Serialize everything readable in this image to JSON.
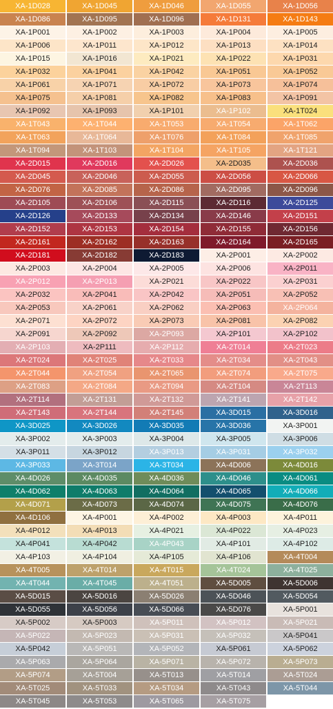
{
  "swatches": [
    [
      "XA-1D028",
      "#f7b533"
    ],
    [
      "XA-1D045",
      "#f0a532"
    ],
    [
      "XA-1D046",
      "#ef9d3e"
    ],
    [
      "XA-1D055",
      "#f2a66f"
    ],
    [
      "XA-1D056",
      "#e8824a"
    ],
    [
      "XA-1D086",
      "#c9834f"
    ],
    [
      "XA-1D095",
      "#a27452"
    ],
    [
      "XA-1D096",
      "#a06f51"
    ],
    [
      "XA-1D131",
      "#f57b3a"
    ],
    [
      "XA-1D143",
      "#f57c13"
    ],
    [
      "XA-1P001",
      "#fdf3e7"
    ],
    [
      "XA-1P002",
      "#fdf0e3"
    ],
    [
      "XA-1P003",
      "#fdeedd"
    ],
    [
      "XA-1P004",
      "#fdeadb"
    ],
    [
      "XA-1P005",
      "#fdeee0"
    ],
    [
      "XA-1P006",
      "#fde5c8"
    ],
    [
      "XA-1P011",
      "#fde6cd"
    ],
    [
      "XA-1P012",
      "#fde6c8"
    ],
    [
      "XA-1P013",
      "#fddfc2"
    ],
    [
      "XA-1P014",
      "#fde1c2"
    ],
    [
      "XA-1P015",
      "#fdf5e2"
    ],
    [
      "XA-1P016",
      "#f2e6d2"
    ],
    [
      "XA-1P021",
      "#fdebc0"
    ],
    [
      "XA-1P022",
      "#fde2b3"
    ],
    [
      "XA-1P031",
      "#fdd8ad"
    ],
    [
      "XA-1P032",
      "#fcd29c"
    ],
    [
      "XA-1P041",
      "#fbd19f"
    ],
    [
      "XA-1P042",
      "#fad2a2"
    ],
    [
      "XA-1P051",
      "#f9c894"
    ],
    [
      "XA-1P052",
      "#f9c996"
    ],
    [
      "XA-1P061",
      "#f8d2a8"
    ],
    [
      "XA-1P071",
      "#f6d3b2"
    ],
    [
      "XA-1P072",
      "#f8cda4"
    ],
    [
      "XA-1P073",
      "#f8c59c"
    ],
    [
      "XA-1P074",
      "#f6c09a"
    ],
    [
      "XA-1P075",
      "#f5c18f"
    ],
    [
      "XA-1P081",
      "#f5cfa9"
    ],
    [
      "XA-1P082",
      "#f7c58d"
    ],
    [
      "XA-1P083",
      "#f7c08b"
    ],
    [
      "XA-1P091",
      "#f3c4a5"
    ],
    [
      "XA-1P092",
      "#e8c6b1"
    ],
    [
      "XA-1P093",
      "#e6c4ac"
    ],
    [
      "XA-1P101",
      "#f1d0ae"
    ],
    [
      "XA-1P102",
      "#ebbd8f"
    ],
    [
      "XA-1T024",
      "#fae07c"
    ],
    [
      "XA-1T043",
      "#f9b26c"
    ],
    [
      "XA-1T044",
      "#fdb170"
    ],
    [
      "XA-1T053",
      "#f8ab6e"
    ],
    [
      "XA-1T054",
      "#f7ab6f"
    ],
    [
      "XA-1T062",
      "#fba468"
    ],
    [
      "XA-1T063",
      "#f2a35c"
    ],
    [
      "XA-1T064",
      "#e8b898"
    ],
    [
      "XA-1T076",
      "#eea06b"
    ],
    [
      "XA-1T084",
      "#f3a15a"
    ],
    [
      "XA-1T085",
      "#f0a36c"
    ],
    [
      "XA-1T094",
      "#c3977a"
    ],
    [
      "XA-1T103",
      "#c3937a"
    ],
    [
      "XA-1T104",
      "#f3a563"
    ],
    [
      "XA-1T105",
      "#f5a463"
    ],
    [
      "XA-1T121",
      "#e3a482"
    ],
    [
      "XA-2D015",
      "#e0344d"
    ],
    [
      "XA-2D016",
      "#e0395d"
    ],
    [
      "XA-2D026",
      "#e3514d"
    ],
    [
      "XA-2D035",
      "#f4be8a"
    ],
    [
      "XA-2D036",
      "#ad524f"
    ],
    [
      "XA-2D045",
      "#d45a4e"
    ],
    [
      "XA-2D046",
      "#c8625a"
    ],
    [
      "XA-2D055",
      "#cc5c4e"
    ],
    [
      "XA-2D056",
      "#cc4e45"
    ],
    [
      "XA-2D066",
      "#d85744"
    ],
    [
      "XA-2D076",
      "#c26445"
    ],
    [
      "XA-2D085",
      "#c3735a"
    ],
    [
      "XA-2D086",
      "#b6644b"
    ],
    [
      "XA-2D095",
      "#a16b61"
    ],
    [
      "XA-2D096",
      "#8c5748"
    ],
    [
      "XA-2D105",
      "#9e4b55"
    ],
    [
      "XA-2D106",
      "#9e5156"
    ],
    [
      "XA-2D115",
      "#8a4f55"
    ],
    [
      "XA-2D116",
      "#5c2a33"
    ],
    [
      "XA-2D125",
      "#3d4a9a"
    ],
    [
      "XA-2D126",
      "#25408a"
    ],
    [
      "XA-2D133",
      "#a64a5b"
    ],
    [
      "XA-2D134",
      "#77414b"
    ],
    [
      "XA-2D146",
      "#893b49"
    ],
    [
      "XA-2D151",
      "#c3404a"
    ],
    [
      "XA-2D152",
      "#b13d4c"
    ],
    [
      "XA-2D153",
      "#ae3542"
    ],
    [
      "XA-2D154",
      "#a42e3d"
    ],
    [
      "XA-2D155",
      "#8f2b37"
    ],
    [
      "XA-2D156",
      "#6f2932"
    ],
    [
      "XA-2D161",
      "#c2271f"
    ],
    [
      "XA-2D162",
      "#9d2e24"
    ],
    [
      "XA-2D163",
      "#97302a"
    ],
    [
      "XA-2D164",
      "#7f1a2b"
    ],
    [
      "XA-2D165",
      "#7a1e23"
    ],
    [
      "XA-2D181",
      "#d10d1d"
    ],
    [
      "XA-2D182",
      "#873b34"
    ],
    [
      "XA-2D183",
      "#0e1a33"
    ],
    [
      "XA-2P001",
      "#fdeee6"
    ],
    [
      "XA-2P002",
      "#fdeae3"
    ],
    [
      "XA-2P003",
      "#fde8e2"
    ],
    [
      "XA-2P004",
      "#fde6e4"
    ],
    [
      "XA-2P005",
      "#fde8e8"
    ],
    [
      "XA-2P006",
      "#fde3e1"
    ],
    [
      "XA-2P011",
      "#f9b3c5"
    ],
    [
      "XA-2P012",
      "#f8a1b3"
    ],
    [
      "XA-2P013",
      "#f59fb2"
    ],
    [
      "XA-2P021",
      "#fcdcd8"
    ],
    [
      "XA-2P022",
      "#f8c6c6"
    ],
    [
      "XA-2P031",
      "#fbd0d0"
    ],
    [
      "XA-2P032",
      "#fbc4c1"
    ],
    [
      "XA-2P041",
      "#f9bcb9"
    ],
    [
      "XA-2P042",
      "#f9c5c5"
    ],
    [
      "XA-2P051",
      "#f6bcb8"
    ],
    [
      "XA-2P052",
      "#f8c0b5"
    ],
    [
      "XA-2P053",
      "#f8c8bd"
    ],
    [
      "XA-2P061",
      "#f8d2c8"
    ],
    [
      "XA-2P062",
      "#f9cfc3"
    ],
    [
      "XA-2P063",
      "#fbbfb2"
    ],
    [
      "XA-2P064",
      "#f4b39e"
    ],
    [
      "XA-2P071",
      "#fde0d2"
    ],
    [
      "XA-2P072",
      "#fdd4c3"
    ],
    [
      "XA-2P073",
      "#f9cbb5"
    ],
    [
      "XA-2P081",
      "#f8c3a9"
    ],
    [
      "XA-2P082",
      "#fbd2b2"
    ],
    [
      "XA-2P091",
      "#f6d6cf"
    ],
    [
      "XA-2P092",
      "#eec8b8"
    ],
    [
      "XA-2P093",
      "#dca8a3"
    ],
    [
      "XA-2P101",
      "#f4c8d0"
    ],
    [
      "XA-2P102",
      "#f2c2cb"
    ],
    [
      "XA-2P103",
      "#e3aeb3"
    ],
    [
      "XA-2P111",
      "#eebbbf"
    ],
    [
      "XA-2P112",
      "#e6acae"
    ],
    [
      "XA-2T014",
      "#ef7f95"
    ],
    [
      "XA-2T023",
      "#ec7c88"
    ],
    [
      "XA-2T024",
      "#dc7779"
    ],
    [
      "XA-2T025",
      "#e08378"
    ],
    [
      "XA-2T033",
      "#e6888a"
    ],
    [
      "XA-2T034",
      "#e48d89"
    ],
    [
      "XA-2T043",
      "#e28f86"
    ],
    [
      "XA-2T044",
      "#f4956c"
    ],
    [
      "XA-2T054",
      "#f0a181"
    ],
    [
      "XA-2T065",
      "#e9956f"
    ],
    [
      "XA-2T074",
      "#f29d7d"
    ],
    [
      "XA-2T075",
      "#f9a98b"
    ],
    [
      "XA-2T083",
      "#dda085"
    ],
    [
      "XA-2T084",
      "#f4a886"
    ],
    [
      "XA-2T094",
      "#e99a84"
    ],
    [
      "XA-2T104",
      "#d58a83"
    ],
    [
      "XA-2T113",
      "#c98697"
    ],
    [
      "XA-2T114",
      "#b2707e"
    ],
    [
      "XA-2T131",
      "#c29e96"
    ],
    [
      "XA-2T132",
      "#d09a97"
    ],
    [
      "XA-2T141",
      "#bca5b0"
    ],
    [
      "XA-2T142",
      "#e7a1a8"
    ],
    [
      "XA-2T143",
      "#cf6d78"
    ],
    [
      "XA-2T144",
      "#d8747d"
    ],
    [
      "XA-2T145",
      "#d28078"
    ],
    [
      "XA-3D015",
      "#2a6fa3"
    ],
    [
      "XA-3D016",
      "#30628c"
    ],
    [
      "XA-3D025",
      "#0f96c6"
    ],
    [
      "XA-3D026",
      "#1289c0"
    ],
    [
      "XA-3D035",
      "#127bb5"
    ],
    [
      "XA-3D036",
      "#2774a8"
    ],
    [
      "XA-3P001",
      "#f2f4f2"
    ],
    [
      "XA-3P002",
      "#e3ecec"
    ],
    [
      "XA-3P003",
      "#e3ecec"
    ],
    [
      "XA-3P004",
      "#dde8e9"
    ],
    [
      "XA-3P005",
      "#cfe6ee"
    ],
    [
      "XA-3P006",
      "#cfdde4"
    ],
    [
      "XA-3P011",
      "#d4dfe6"
    ],
    [
      "XA-3P012",
      "#c7d6e0"
    ],
    [
      "XA-3P013",
      "#b3cee0"
    ],
    [
      "XA-3P031",
      "#a5cde4"
    ],
    [
      "XA-3P032",
      "#9bd0ee"
    ],
    [
      "XA-3P033",
      "#5db8e4"
    ],
    [
      "XA-3T014",
      "#7ba4c8"
    ],
    [
      "XA-3T034",
      "#2bb4e6"
    ],
    [
      "XA-4D006",
      "#8c7359"
    ],
    [
      "XA-4D016",
      "#7c8a3a"
    ],
    [
      "XA-4D026",
      "#5e8d69"
    ],
    [
      "XA-4D035",
      "#5c8a62"
    ],
    [
      "XA-4D036",
      "#6f8c5a"
    ],
    [
      "XA-4D046",
      "#2d8f8b"
    ],
    [
      "XA-4D061",
      "#0a8c82"
    ],
    [
      "XA-4D062",
      "#0f7f6a"
    ],
    [
      "XA-4D063",
      "#0f7c6a"
    ],
    [
      "XA-4D064",
      "#116e61"
    ],
    [
      "XA-4D065",
      "#134f6d"
    ],
    [
      "XA-4D066",
      "#12adb8"
    ],
    [
      "XA-4D071",
      "#b3a04a"
    ],
    [
      "XA-4D073",
      "#6b6c47"
    ],
    [
      "XA-4D074",
      "#5b6746"
    ],
    [
      "XA-4D075",
      "#3f7454"
    ],
    [
      "XA-4D076",
      "#3a6d49"
    ],
    [
      "XA-4D106",
      "#907040"
    ],
    [
      "XA-4P001",
      "#fdf5e4"
    ],
    [
      "XA-4P002",
      "#fdefd6"
    ],
    [
      "XA-4P003",
      "#fde8c4"
    ],
    [
      "XA-4P011",
      "#fdf3dc"
    ],
    [
      "XA-4P012",
      "#f3e0bb"
    ],
    [
      "XA-4P013",
      "#f3ddb6"
    ],
    [
      "XA-4P021",
      "#e6f0e2"
    ],
    [
      "XA-4P022",
      "#dbe7d5"
    ],
    [
      "XA-4P023",
      "#e6efe3"
    ],
    [
      "XA-4P041",
      "#c4e2dc"
    ],
    [
      "XA-4P042",
      "#b8dcd2"
    ],
    [
      "XA-4P043",
      "#a8d3c6"
    ],
    [
      "XA-4P101",
      "#e1ebe4"
    ],
    [
      "XA-4P102",
      "#ddebe6"
    ],
    [
      "XA-4P103",
      "#f2f0e4"
    ],
    [
      "XA-4P104",
      "#f0efe1"
    ],
    [
      "XA-4P105",
      "#e5ead7"
    ],
    [
      "XA-4P106",
      "#e1e4d0"
    ],
    [
      "XA-4T004",
      "#b48a5a"
    ],
    [
      "XA-4T005",
      "#b7925c"
    ],
    [
      "XA-4T014",
      "#bda16b"
    ],
    [
      "XA-4T015",
      "#c9a85d"
    ],
    [
      "XA-4T024",
      "#a5c499"
    ],
    [
      "XA-4T025",
      "#8db09d"
    ],
    [
      "XA-4T044",
      "#72b3b0"
    ],
    [
      "XA-4T045",
      "#6aada7"
    ],
    [
      "XA-4T051",
      "#bcb08c"
    ],
    [
      "XA-5D005",
      "#5f4e40"
    ],
    [
      "XA-5D006",
      "#3f3431"
    ],
    [
      "XA-5D015",
      "#5a4d45"
    ],
    [
      "XA-5D016",
      "#4b4541"
    ],
    [
      "XA-5D026",
      "#8b7f72"
    ],
    [
      "XA-5D046",
      "#4c5257"
    ],
    [
      "XA-5D054",
      "#525a60"
    ],
    [
      "XA-5D055",
      "#2f3338"
    ],
    [
      "XA-5D056",
      "#3d4149"
    ],
    [
      "XA-5D066",
      "#484d55"
    ],
    [
      "XA-5D076",
      "#4a4948"
    ],
    [
      "XA-5P001",
      "#e8e2dd"
    ],
    [
      "XA-5P002",
      "#d7cbc6"
    ],
    [
      "XA-5P003",
      "#d6cac2"
    ],
    [
      "XA-5P011",
      "#cfc1bb"
    ],
    [
      "XA-5P012",
      "#d2c2c2"
    ],
    [
      "XA-5P021",
      "#c9bbb6"
    ],
    [
      "XA-5P022",
      "#c5b6b6"
    ],
    [
      "XA-5P023",
      "#c3b9b1"
    ],
    [
      "XA-5P031",
      "#cac0b5"
    ],
    [
      "XA-5P032",
      "#c5c0b9"
    ],
    [
      "XA-5P041",
      "#cac8c9"
    ],
    [
      "XA-5P042",
      "#c6ced8"
    ],
    [
      "XA-5P051",
      "#b9b8b7"
    ],
    [
      "XA-5P052",
      "#b3b5b9"
    ],
    [
      "XA-5P061",
      "#c6cad3"
    ],
    [
      "XA-5P062",
      "#ccd2dd"
    ],
    [
      "XA-5P063",
      "#aaaaac"
    ],
    [
      "XA-5P064",
      "#aaa69f"
    ],
    [
      "XA-5P071",
      "#b9b3a4"
    ],
    [
      "XA-5P072",
      "#b8b3ac"
    ],
    [
      "XA-5P073",
      "#b9ad91"
    ],
    [
      "XA-5P074",
      "#b29d86"
    ],
    [
      "XA-5T004",
      "#a6a097"
    ],
    [
      "XA-5T013",
      "#97908b"
    ],
    [
      "XA-5T014",
      "#9f9fa3"
    ],
    [
      "XA-5T024",
      "#ab9d94"
    ],
    [
      "XA-5T025",
      "#a28b79"
    ],
    [
      "XA-5T033",
      "#a1927f"
    ],
    [
      "XA-5T034",
      "#b59b82"
    ],
    [
      "XA-5T043",
      "#8e8a8b"
    ],
    [
      "XA-5T044",
      "#7d96a8"
    ],
    [
      "XA-5T045",
      "#8d8887"
    ],
    [
      "XA-5T053",
      "#8e8b8b"
    ],
    [
      "XA-5T065",
      "#9e9aa1"
    ],
    [
      "XA-5T075",
      "#a69fa3"
    ]
  ]
}
